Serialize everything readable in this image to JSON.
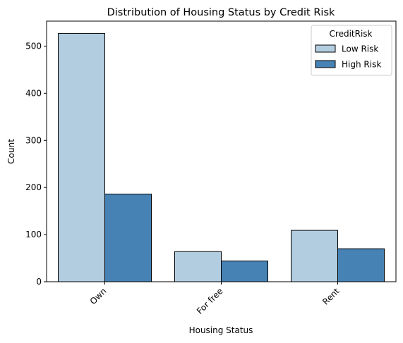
{
  "chart_data": {
    "type": "bar",
    "title": "Distribution of Housing Status by Credit Risk",
    "xlabel": "Housing Status",
    "ylabel": "Count",
    "categories": [
      "Own",
      "For free",
      "Rent"
    ],
    "series": [
      {
        "name": "Low Risk",
        "values": [
          527,
          64,
          109
        ],
        "color": "#b3cde0"
      },
      {
        "name": "High Risk",
        "values": [
          186,
          44,
          70
        ],
        "color": "#4682b4"
      }
    ],
    "ylim": [
      0,
      553
    ],
    "yticks": [
      0,
      100,
      200,
      300,
      400,
      500
    ],
    "grid": false,
    "legend": {
      "title": "CreditRisk",
      "placement": "top-right"
    }
  }
}
